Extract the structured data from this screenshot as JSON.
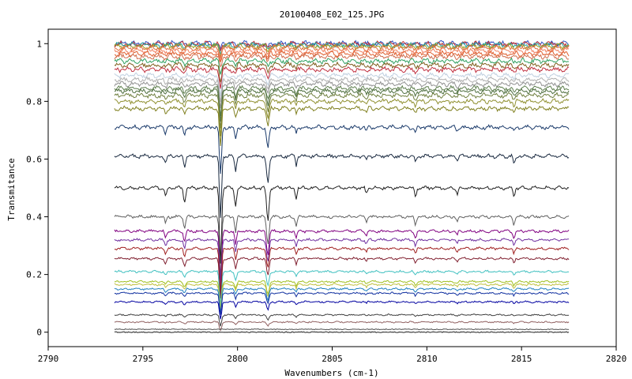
{
  "chart_data": {
    "type": "line",
    "title": "20100408_E02_125.JPG",
    "xlabel": "Wavenumbers (cm-1)",
    "ylabel": "Transmitance",
    "xlim": [
      2790,
      2820
    ],
    "ylim": [
      -0.05,
      1.05
    ],
    "xticks": [
      "2790",
      "2795",
      "2800",
      "2805",
      "2810",
      "2815",
      "2820"
    ],
    "yticks": [
      "0",
      "0.2",
      "0.4",
      "0.6",
      "0.8",
      "1"
    ],
    "x_range_data": [
      2793.5,
      2817.5
    ],
    "grid": false,
    "legend": "none",
    "series": [
      {
        "baseline": 1.0,
        "color": "#3050c0"
      },
      {
        "baseline": 0.998,
        "color": "#c03030"
      },
      {
        "baseline": 0.995,
        "color": "#20a0a0"
      },
      {
        "baseline": 0.99,
        "color": "#a0a020"
      },
      {
        "baseline": 0.985,
        "color": "#e07040"
      },
      {
        "baseline": 0.975,
        "color": "#f08060"
      },
      {
        "baseline": 0.965,
        "color": "#e06030"
      },
      {
        "baseline": 0.955,
        "color": "#d07050"
      },
      {
        "baseline": 0.94,
        "color": "#30a060"
      },
      {
        "baseline": 0.925,
        "color": "#806020"
      },
      {
        "baseline": 0.91,
        "color": "#c03040"
      },
      {
        "baseline": 0.89,
        "color": "#c0d0e0"
      },
      {
        "baseline": 0.875,
        "color": "#b0b0b0"
      },
      {
        "baseline": 0.86,
        "color": "#909090"
      },
      {
        "baseline": 0.845,
        "color": "#608050"
      },
      {
        "baseline": 0.835,
        "color": "#507040"
      },
      {
        "baseline": 0.82,
        "color": "#708040"
      },
      {
        "baseline": 0.8,
        "color": "#909030"
      },
      {
        "baseline": 0.775,
        "color": "#808020"
      },
      {
        "baseline": 0.71,
        "color": "#1a3a6a"
      },
      {
        "baseline": 0.61,
        "color": "#1a2a40"
      },
      {
        "baseline": 0.5,
        "color": "#202020"
      },
      {
        "baseline": 0.4,
        "color": "#606060"
      },
      {
        "baseline": 0.35,
        "color": "#800080"
      },
      {
        "baseline": 0.32,
        "color": "#7030a0"
      },
      {
        "baseline": 0.29,
        "color": "#a02020"
      },
      {
        "baseline": 0.255,
        "color": "#802030"
      },
      {
        "baseline": 0.21,
        "color": "#40c0c0"
      },
      {
        "baseline": 0.175,
        "color": "#a0c020"
      },
      {
        "baseline": 0.165,
        "color": "#c0c040"
      },
      {
        "baseline": 0.15,
        "color": "#2080c0"
      },
      {
        "baseline": 0.135,
        "color": "#1030a0"
      },
      {
        "baseline": 0.105,
        "color": "#0000a0"
      },
      {
        "baseline": 0.06,
        "color": "#404040"
      },
      {
        "baseline": 0.035,
        "color": "#906060"
      },
      {
        "baseline": 0.01,
        "color": "#505050"
      },
      {
        "baseline": 0.0,
        "color": "#202020"
      }
    ]
  }
}
